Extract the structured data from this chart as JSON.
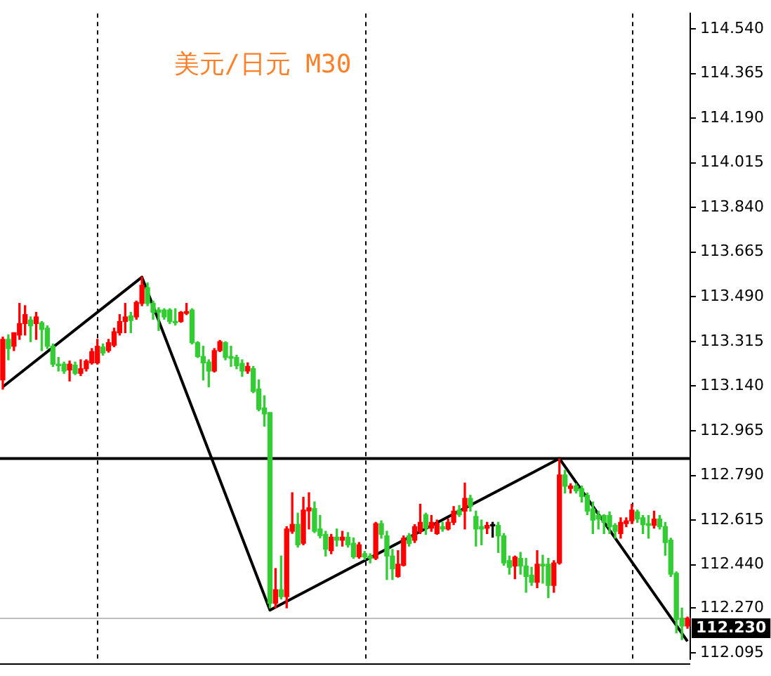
{
  "chart_data": {
    "type": "candlestick",
    "title": "美元/日元 M30",
    "tick_labels": "y",
    "categories": [
      null,
      null,
      null,
      null,
      null,
      null,
      null,
      null,
      null,
      null,
      null,
      null,
      null,
      null,
      null,
      null,
      null,
      null,
      null,
      null,
      null,
      null,
      null,
      null,
      null,
      null,
      null,
      null,
      null,
      null,
      null,
      null,
      null,
      null,
      null,
      null,
      null,
      null,
      null,
      null,
      null,
      null,
      null,
      null,
      null,
      null,
      null,
      null,
      null,
      null,
      null,
      null,
      null,
      null,
      null,
      null,
      null,
      null,
      null,
      null,
      null,
      null,
      null,
      null,
      null,
      null,
      null,
      null,
      null,
      null,
      null,
      null,
      null,
      null,
      null,
      null,
      null,
      null,
      null,
      null,
      null,
      null,
      null,
      null,
      null,
      null,
      null,
      null,
      null,
      null,
      null,
      null,
      null,
      null,
      null,
      null,
      null,
      null,
      null,
      null,
      null,
      null,
      null,
      null,
      null,
      null,
      null,
      null,
      null,
      null,
      null,
      null,
      null,
      null,
      null,
      null,
      null,
      null,
      null,
      null,
      null,
      null,
      null,
      null
    ],
    "ohlc": [
      [
        113.164,
        113.332,
        113.128,
        113.323
      ],
      [
        113.323,
        113.341,
        113.243,
        113.287
      ],
      [
        113.296,
        113.349,
        113.279,
        113.349
      ],
      [
        113.34,
        113.464,
        113.323,
        113.385
      ],
      [
        113.385,
        113.455,
        113.34,
        113.42
      ],
      [
        113.399,
        113.411,
        113.314,
        113.376
      ],
      [
        113.385,
        113.429,
        113.323,
        113.411
      ],
      [
        113.388,
        113.393,
        113.279,
        113.362
      ],
      [
        113.367,
        113.376,
        113.287,
        113.296
      ],
      [
        113.296,
        113.305,
        113.217,
        113.226
      ],
      [
        113.226,
        113.252,
        113.199,
        113.22
      ],
      [
        113.226,
        113.234,
        113.19,
        113.199
      ],
      [
        113.203,
        113.238,
        113.16,
        113.226
      ],
      [
        113.222,
        113.234,
        113.185,
        113.19
      ],
      [
        113.19,
        113.243,
        113.181,
        113.208
      ],
      [
        113.208,
        113.243,
        113.199,
        113.238
      ],
      [
        113.231,
        113.287,
        113.226,
        113.275
      ],
      [
        113.231,
        113.323,
        113.226,
        113.296
      ],
      [
        113.293,
        113.305,
        113.261,
        113.27
      ],
      [
        113.279,
        113.323,
        113.273,
        113.31
      ],
      [
        113.3,
        113.367,
        113.294,
        113.353
      ],
      [
        113.349,
        113.42,
        113.34,
        113.393
      ],
      [
        113.393,
        113.464,
        113.349,
        113.411
      ],
      [
        113.415,
        113.429,
        113.349,
        113.397
      ],
      [
        113.411,
        113.473,
        113.402,
        113.468
      ],
      [
        113.464,
        113.567,
        113.455,
        113.535
      ],
      [
        113.526,
        113.544,
        113.455,
        113.464
      ],
      [
        113.464,
        113.473,
        113.402,
        113.429
      ],
      [
        113.438,
        113.447,
        113.358,
        113.429
      ],
      [
        113.438,
        113.443,
        113.402,
        113.411
      ],
      [
        113.438,
        113.443,
        113.385,
        113.393
      ],
      [
        113.393,
        113.443,
        113.379,
        113.388
      ],
      [
        113.393,
        113.432,
        113.39,
        113.429
      ],
      [
        113.425,
        113.464,
        113.42,
        113.432
      ],
      [
        113.438,
        113.443,
        113.305,
        113.31
      ],
      [
        113.31,
        113.314,
        113.252,
        113.256
      ],
      [
        113.256,
        113.296,
        113.164,
        113.231
      ],
      [
        113.234,
        113.243,
        113.137,
        113.199
      ],
      [
        113.199,
        113.287,
        113.195,
        113.279
      ],
      [
        113.279,
        113.319,
        113.275,
        113.314
      ],
      [
        113.31,
        113.314,
        113.243,
        113.252
      ],
      [
        113.256,
        113.296,
        113.217,
        113.249
      ],
      [
        113.252,
        113.261,
        113.208,
        113.22
      ],
      [
        113.229,
        113.243,
        113.178,
        113.199
      ],
      [
        113.199,
        113.231,
        113.19,
        113.217
      ],
      [
        113.208,
        113.217,
        113.114,
        113.119
      ],
      [
        113.128,
        113.164,
        113.043,
        113.049
      ],
      [
        113.054,
        113.102,
        112.983,
        113.031
      ],
      [
        113.036,
        113.036,
        112.271,
        112.289
      ],
      [
        112.289,
        112.425,
        112.271,
        112.342
      ],
      [
        112.342,
        112.474,
        112.306,
        112.315
      ],
      [
        112.315,
        112.589,
        112.271,
        112.58
      ],
      [
        112.571,
        112.722,
        112.563,
        112.598
      ],
      [
        112.598,
        112.642,
        112.509,
        112.518
      ],
      [
        112.524,
        112.704,
        112.518,
        112.654
      ],
      [
        112.651,
        112.722,
        112.58,
        112.663
      ],
      [
        112.66,
        112.686,
        112.566,
        112.571
      ],
      [
        112.58,
        112.633,
        112.545,
        112.554
      ],
      [
        112.559,
        112.571,
        112.474,
        112.501
      ],
      [
        112.495,
        112.559,
        112.483,
        112.548
      ],
      [
        112.548,
        112.58,
        112.513,
        112.536
      ],
      [
        112.536,
        112.571,
        112.513,
        112.548
      ],
      [
        112.548,
        112.566,
        112.509,
        112.518
      ],
      [
        112.524,
        112.545,
        112.465,
        112.471
      ],
      [
        112.471,
        112.527,
        112.465,
        112.518
      ],
      [
        112.483,
        112.492,
        112.46,
        112.471
      ],
      [
        112.474,
        112.483,
        112.447,
        112.465
      ],
      [
        112.465,
        112.606,
        112.46,
        112.601
      ],
      [
        112.601,
        112.612,
        112.544,
        112.559
      ],
      [
        112.553,
        112.571,
        112.382,
        112.474
      ],
      [
        112.474,
        112.5,
        112.382,
        112.424
      ],
      [
        112.394,
        112.495,
        112.391,
        112.442
      ],
      [
        112.438,
        112.553,
        112.435,
        112.544
      ],
      [
        112.553,
        112.562,
        112.513,
        112.523
      ],
      [
        112.536,
        112.597,
        112.527,
        112.589
      ],
      [
        112.571,
        112.677,
        112.562,
        112.606
      ],
      [
        112.636,
        112.642,
        112.559,
        112.583
      ],
      [
        112.583,
        112.633,
        112.571,
        112.606
      ],
      [
        112.562,
        112.615,
        112.559,
        112.601
      ],
      [
        112.589,
        112.606,
        112.571,
        112.58
      ],
      [
        112.58,
        112.619,
        112.576,
        112.606
      ],
      [
        112.606,
        112.668,
        112.597,
        112.65
      ],
      [
        112.654,
        112.672,
        112.629,
        112.636
      ],
      [
        112.65,
        112.76,
        112.58,
        112.7
      ],
      [
        112.7,
        112.712,
        112.65,
        112.668
      ],
      [
        112.629,
        112.65,
        112.513,
        112.58
      ],
      [
        112.589,
        112.615,
        112.518,
        112.58
      ],
      [
        112.583,
        112.606,
        112.562,
        112.594
      ],
      [
        112.592,
        112.606,
        112.548,
        112.592
      ],
      [
        112.594,
        112.606,
        112.488,
        112.553
      ],
      [
        112.553,
        112.562,
        112.438,
        112.447
      ],
      [
        112.456,
        112.474,
        112.403,
        112.43
      ],
      [
        112.435,
        112.474,
        112.385,
        112.47
      ],
      [
        112.465,
        112.488,
        112.403,
        112.435
      ],
      [
        112.435,
        112.465,
        112.332,
        112.394
      ],
      [
        112.399,
        112.43,
        112.359,
        112.371
      ],
      [
        112.371,
        112.495,
        112.35,
        112.442
      ],
      [
        112.442,
        112.477,
        112.368,
        112.435
      ],
      [
        112.442,
        112.465,
        112.311,
        112.359
      ],
      [
        112.359,
        112.456,
        112.332,
        112.447
      ],
      [
        112.447,
        112.854,
        112.442,
        112.792
      ],
      [
        112.792,
        112.81,
        112.721,
        112.748
      ],
      [
        112.739,
        112.757,
        112.721,
        112.748
      ],
      [
        112.748,
        112.757,
        112.721,
        112.73
      ],
      [
        112.739,
        112.748,
        112.686,
        112.707
      ],
      [
        112.712,
        112.721,
        112.636,
        112.65
      ],
      [
        112.659,
        112.686,
        112.562,
        112.615
      ],
      [
        112.633,
        112.65,
        112.58,
        112.619
      ],
      [
        112.633,
        112.636,
        112.562,
        112.606
      ],
      [
        112.633,
        112.647,
        112.562,
        112.589
      ],
      [
        112.594,
        112.601,
        112.544,
        112.571
      ],
      [
        112.562,
        112.624,
        112.544,
        112.606
      ],
      [
        112.601,
        112.624,
        112.589,
        112.612
      ],
      [
        112.612,
        112.677,
        112.601,
        112.654
      ],
      [
        112.647,
        112.654,
        112.606,
        112.619
      ],
      [
        112.624,
        112.633,
        112.562,
        112.597
      ],
      [
        112.601,
        112.633,
        112.544,
        112.594
      ],
      [
        112.594,
        112.65,
        112.583,
        112.619
      ],
      [
        112.619,
        112.633,
        112.58,
        112.589
      ],
      [
        112.589,
        112.606,
        112.477,
        112.527
      ],
      [
        112.536,
        112.544,
        112.394,
        112.403
      ],
      [
        112.406,
        112.412,
        112.173,
        112.226
      ],
      [
        112.23,
        112.27,
        112.147,
        112.2
      ],
      [
        112.2,
        112.235,
        112.191,
        112.23
      ]
    ],
    "colors": [
      "#ff0000",
      "#32cd32",
      "#ff0000",
      "#ff0000",
      "#ff0000",
      "#32cd32",
      "#ff0000",
      "#32cd32",
      "#32cd32",
      "#32cd32",
      "#32cd32",
      "#32cd32",
      "#ff0000",
      "#32cd32",
      "#ff0000",
      "#ff0000",
      "#ff0000",
      "#ff0000",
      "#32cd32",
      "#ff0000",
      "#ff0000",
      "#ff0000",
      "#ff0000",
      "#32cd32",
      "#ff0000",
      "#ff0000",
      "#32cd32",
      "#32cd32",
      "#32cd32",
      "#32cd32",
      "#32cd32",
      "#32cd32",
      "#ff0000",
      "#ff0000",
      "#32cd32",
      "#32cd32",
      "#32cd32",
      "#32cd32",
      "#ff0000",
      "#ff0000",
      "#32cd32",
      "#32cd32",
      "#32cd32",
      "#32cd32",
      "#ff0000",
      "#32cd32",
      "#32cd32",
      "#32cd32",
      "#32cd32",
      "#ff0000",
      "#32cd32",
      "#ff0000",
      "#ff0000",
      "#32cd32",
      "#ff0000",
      "#ff0000",
      "#32cd32",
      "#32cd32",
      "#32cd32",
      "#ff0000",
      "#32cd32",
      "#ff0000",
      "#32cd32",
      "#32cd32",
      "#ff0000",
      "#32cd32",
      "#32cd32",
      "#ff0000",
      "#32cd32",
      "#32cd32",
      "#32cd32",
      "#ff0000",
      "#ff0000",
      "#32cd32",
      "#ff0000",
      "#ff0000",
      "#32cd32",
      "#ff0000",
      "#ff0000",
      "#32cd32",
      "#ff0000",
      "#ff0000",
      "#32cd32",
      "#ff0000",
      "#32cd32",
      "#32cd32",
      "#32cd32",
      "#ff0000",
      "#000000",
      "#32cd32",
      "#32cd32",
      "#32cd32",
      "#ff0000",
      "#32cd32",
      "#32cd32",
      "#32cd32",
      "#ff0000",
      "#32cd32",
      "#32cd32",
      "#ff0000",
      "#ff0000",
      "#32cd32",
      "#ff0000",
      "#32cd32",
      "#32cd32",
      "#32cd32",
      "#32cd32",
      "#32cd32",
      "#32cd32",
      "#32cd32",
      "#32cd32",
      "#ff0000",
      "#ff0000",
      "#ff0000",
      "#32cd32",
      "#32cd32",
      "#32cd32",
      "#ff0000",
      "#32cd32",
      "#32cd32",
      "#32cd32",
      "#32cd32",
      "#32cd32",
      "#ff0000"
    ],
    "series": [
      {
        "type": "line",
        "color": "#000000",
        "values": [
          113.137,
          null,
          null,
          null,
          null,
          null,
          null,
          null,
          null,
          null,
          null,
          null,
          null,
          null,
          null,
          null,
          null,
          null,
          null,
          null,
          null,
          null,
          null,
          null,
          null,
          113.567,
          null,
          null,
          null,
          null,
          null,
          null,
          null,
          null,
          null,
          null,
          null,
          null,
          null,
          null,
          null,
          null,
          null,
          null,
          null,
          null,
          null,
          null,
          112.262,
          null,
          null,
          null,
          null,
          null,
          null,
          null,
          null,
          null,
          null,
          null,
          null,
          null,
          null,
          null,
          null,
          null,
          null,
          null,
          null,
          null,
          null,
          null,
          null,
          null,
          null,
          null,
          null,
          null,
          null,
          null,
          null,
          null,
          null,
          null,
          null,
          null,
          null,
          null,
          null,
          null,
          null,
          null,
          null,
          null,
          null,
          null,
          null,
          null,
          null,
          null,
          112.856,
          null,
          null,
          null,
          null,
          null,
          null,
          null,
          null,
          null,
          null,
          null,
          null,
          null,
          null,
          null,
          null,
          null,
          null,
          null,
          null,
          null,
          null,
          112.14
        ]
      }
    ],
    "ref_lines": [
      {
        "axis": "y",
        "value": 112.856,
        "color": "#000000"
      },
      {
        "axis": "y",
        "value": 112.23,
        "label": "112.230",
        "color": "#c0c0c0"
      }
    ],
    "ylim": [
      112.07,
      114.6
    ],
    "yticks": [
      {
        "value": 114.54,
        "label": "114.540"
      },
      {
        "value": 114.365,
        "label": "114.365"
      },
      {
        "value": 114.19,
        "label": "114.190"
      },
      {
        "value": 114.015,
        "label": "114.015"
      },
      {
        "value": 113.84,
        "label": "113.840"
      },
      {
        "value": 113.665,
        "label": "113.665"
      },
      {
        "value": 113.49,
        "label": "113.490"
      },
      {
        "value": 113.315,
        "label": "113.315"
      },
      {
        "value": 113.14,
        "label": "113.140"
      },
      {
        "value": 112.965,
        "label": "112.965"
      },
      {
        "value": 112.79,
        "label": "112.790"
      },
      {
        "value": 112.615,
        "label": "112.615"
      },
      {
        "value": 112.44,
        "label": "112.440"
      },
      {
        "value": 112.27,
        "label": "112.270"
      },
      {
        "value": 112.095,
        "label": "112.095"
      }
    ]
  }
}
